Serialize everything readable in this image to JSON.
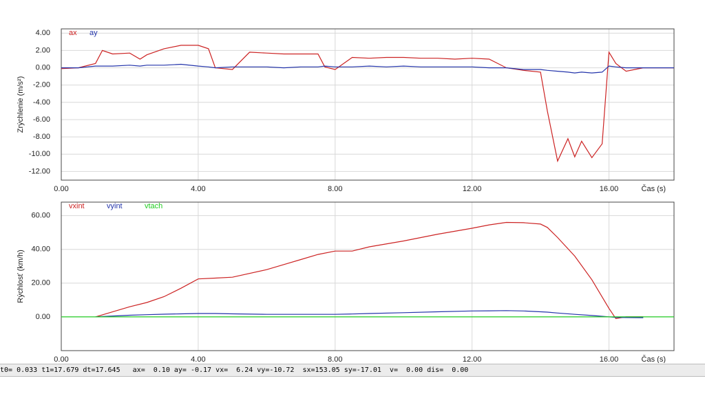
{
  "chart_data": [
    {
      "type": "line",
      "y_label": "Zrýchlenie (m/s²)",
      "x_label": "Čas (s)",
      "grid": true,
      "xlim": [
        0,
        17.9
      ],
      "ylim": [
        -13,
        4.5
      ],
      "xticks": [
        {
          "value": 0,
          "label": "0.00"
        },
        {
          "value": 4,
          "label": "4.00"
        },
        {
          "value": 8,
          "label": "8.00"
        },
        {
          "value": 12,
          "label": "12.00"
        },
        {
          "value": 16,
          "label": "16.00"
        }
      ],
      "yticks": [
        {
          "value": 4,
          "label": "4.00"
        },
        {
          "value": 2,
          "label": "2.00"
        },
        {
          "value": 0,
          "label": "0.00"
        },
        {
          "value": -2,
          "label": "-2.00"
        },
        {
          "value": -4,
          "label": "-4.00"
        },
        {
          "value": -6,
          "label": "-6.00"
        },
        {
          "value": -8,
          "label": "-8.00"
        },
        {
          "value": -10,
          "label": "-10.00"
        },
        {
          "value": -12,
          "label": "-12.00"
        }
      ],
      "x": [
        0,
        0.5,
        1,
        1.2,
        1.5,
        2,
        2.3,
        2.5,
        3,
        3.5,
        4,
        4.3,
        4.5,
        5,
        5.5,
        6,
        6.5,
        7,
        7.5,
        7.7,
        8,
        8.5,
        9,
        9.5,
        10,
        10.5,
        11,
        11.5,
        12,
        12.5,
        13,
        13.5,
        14,
        14.2,
        14.5,
        14.8,
        15,
        15.2,
        15.5,
        15.8,
        16,
        16.2,
        16.5,
        17,
        17.9
      ],
      "series": [
        {
          "name": "ax",
          "color": "#cc2222",
          "values": [
            -0.1,
            0,
            0.5,
            2.0,
            1.6,
            1.7,
            1.0,
            1.5,
            2.2,
            2.6,
            2.6,
            2.2,
            0,
            -0.2,
            1.8,
            1.7,
            1.6,
            1.6,
            1.6,
            0.1,
            -0.2,
            1.2,
            1.1,
            1.2,
            1.2,
            1.1,
            1.1,
            1.0,
            1.1,
            1.0,
            0,
            -0.3,
            -0.5,
            -5,
            -10.8,
            -8.2,
            -10.3,
            -8.5,
            -10.4,
            -8.8,
            1.8,
            0.5,
            -0.4,
            0,
            0
          ]
        },
        {
          "name": "ay",
          "color": "#2233aa",
          "values": [
            0,
            0,
            0.2,
            0.2,
            0.2,
            0.3,
            0.2,
            0.3,
            0.3,
            0.4,
            0.2,
            0.1,
            0,
            0.1,
            0.1,
            0.1,
            0,
            0.1,
            0.1,
            0.2,
            0.1,
            0.1,
            0.2,
            0.1,
            0.2,
            0.1,
            0.1,
            0.1,
            0.1,
            0,
            0,
            -0.2,
            -0.2,
            -0.3,
            -0.4,
            -0.5,
            -0.6,
            -0.5,
            -0.6,
            -0.5,
            0.2,
            0.1,
            0,
            0,
            0
          ]
        }
      ]
    },
    {
      "type": "line",
      "y_label": "Rýchlosť (km/h)",
      "x_label": "Čas (s)",
      "grid": true,
      "xlim": [
        0,
        17.9
      ],
      "ylim": [
        -20,
        68
      ],
      "xticks": [
        {
          "value": 0,
          "label": "0.00"
        },
        {
          "value": 4,
          "label": "4.00"
        },
        {
          "value": 8,
          "label": "8.00"
        },
        {
          "value": 12,
          "label": "12.00"
        },
        {
          "value": 16,
          "label": "16.00"
        }
      ],
      "yticks": [
        {
          "value": 60,
          "label": "60.00"
        },
        {
          "value": 40,
          "label": "40.00"
        },
        {
          "value": 20,
          "label": "20.00"
        },
        {
          "value": 0,
          "label": "0.00"
        }
      ],
      "x": [
        0,
        1,
        2,
        2.5,
        3,
        3.5,
        4,
        4.5,
        5,
        6,
        7,
        7.5,
        8,
        8.5,
        9,
        10,
        11,
        12,
        12.5,
        13,
        13.5,
        14,
        14.2,
        14.5,
        15,
        15.5,
        16,
        16.2,
        16.5,
        17,
        17.9
      ],
      "series": [
        {
          "name": "vxint",
          "color": "#cc2222",
          "values": [
            null,
            0,
            6,
            8.5,
            12,
            17,
            22.5,
            23,
            23.5,
            28,
            34,
            37,
            39,
            39,
            41.5,
            45,
            49,
            52.5,
            54.5,
            56,
            55.8,
            55,
            53,
            47,
            36,
            22,
            5,
            -1,
            0,
            0,
            null
          ]
        },
        {
          "name": "vyint",
          "color": "#2233aa",
          "values": [
            null,
            0,
            1,
            1.3,
            1.6,
            1.8,
            2,
            2,
            1.8,
            1.5,
            1.5,
            1.5,
            1.5,
            1.7,
            2,
            2.5,
            3,
            3.5,
            3.6,
            3.7,
            3.5,
            3,
            2.8,
            2.3,
            1.5,
            0.8,
            0,
            -0.3,
            -0.4,
            -0.5,
            null
          ]
        },
        {
          "name": "vtach",
          "color": "#22cc22",
          "values": [
            0,
            0,
            0,
            0,
            0,
            0,
            0,
            0,
            0,
            0,
            0,
            0,
            0,
            0,
            0,
            0,
            0,
            0,
            0,
            0,
            0,
            0,
            0,
            0,
            0,
            0,
            0,
            0,
            0,
            0,
            0
          ]
        }
      ]
    }
  ],
  "status_bar": "t0= 0.033 t1=17.679 dt=17.645   ax=  0.10 ay= -0.17 vx=  6.24 vy=-10.72  sx=153.05 sy=-17.01  v=  0.00 dis=  0.00"
}
